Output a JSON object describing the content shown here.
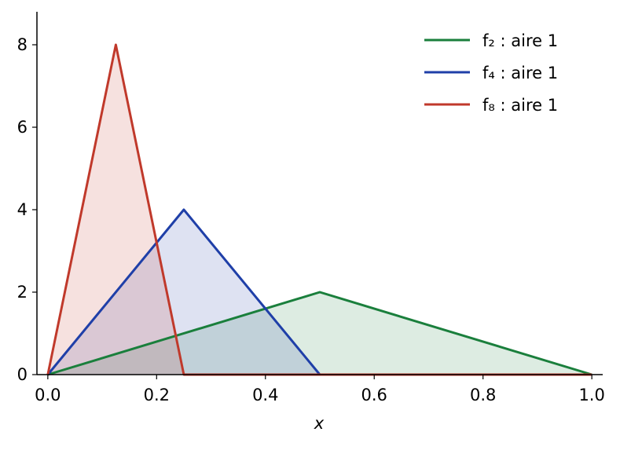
{
  "chart_data": {
    "type": "line",
    "fill": true,
    "x_label": "x",
    "series": [
      {
        "name": "f₂ : aire 1",
        "color": "#1a7f3c",
        "x": [
          0,
          0.5,
          1
        ],
        "values": [
          0,
          2,
          0
        ]
      },
      {
        "name": "f₄ : aire 1",
        "color": "#1f3fa8",
        "x": [
          0,
          0.25,
          0.5,
          1
        ],
        "values": [
          0,
          4,
          0,
          0
        ]
      },
      {
        "name": "f₈ : aire 1",
        "color": "#c0392b",
        "x": [
          0,
          0.125,
          0.25,
          1
        ],
        "values": [
          0,
          8,
          0,
          0
        ]
      }
    ],
    "xlim": [
      -0.02,
      1.02
    ],
    "xticks": [
      {
        "value": 0,
        "label": "0.0"
      },
      0.2,
      0.4,
      0.6,
      0.8,
      {
        "value": 1,
        "label": "1.0"
      }
    ],
    "ylim": [
      0,
      8.8
    ],
    "yticks": [
      0,
      2,
      4,
      6,
      8
    ],
    "legend": "upper-right"
  }
}
